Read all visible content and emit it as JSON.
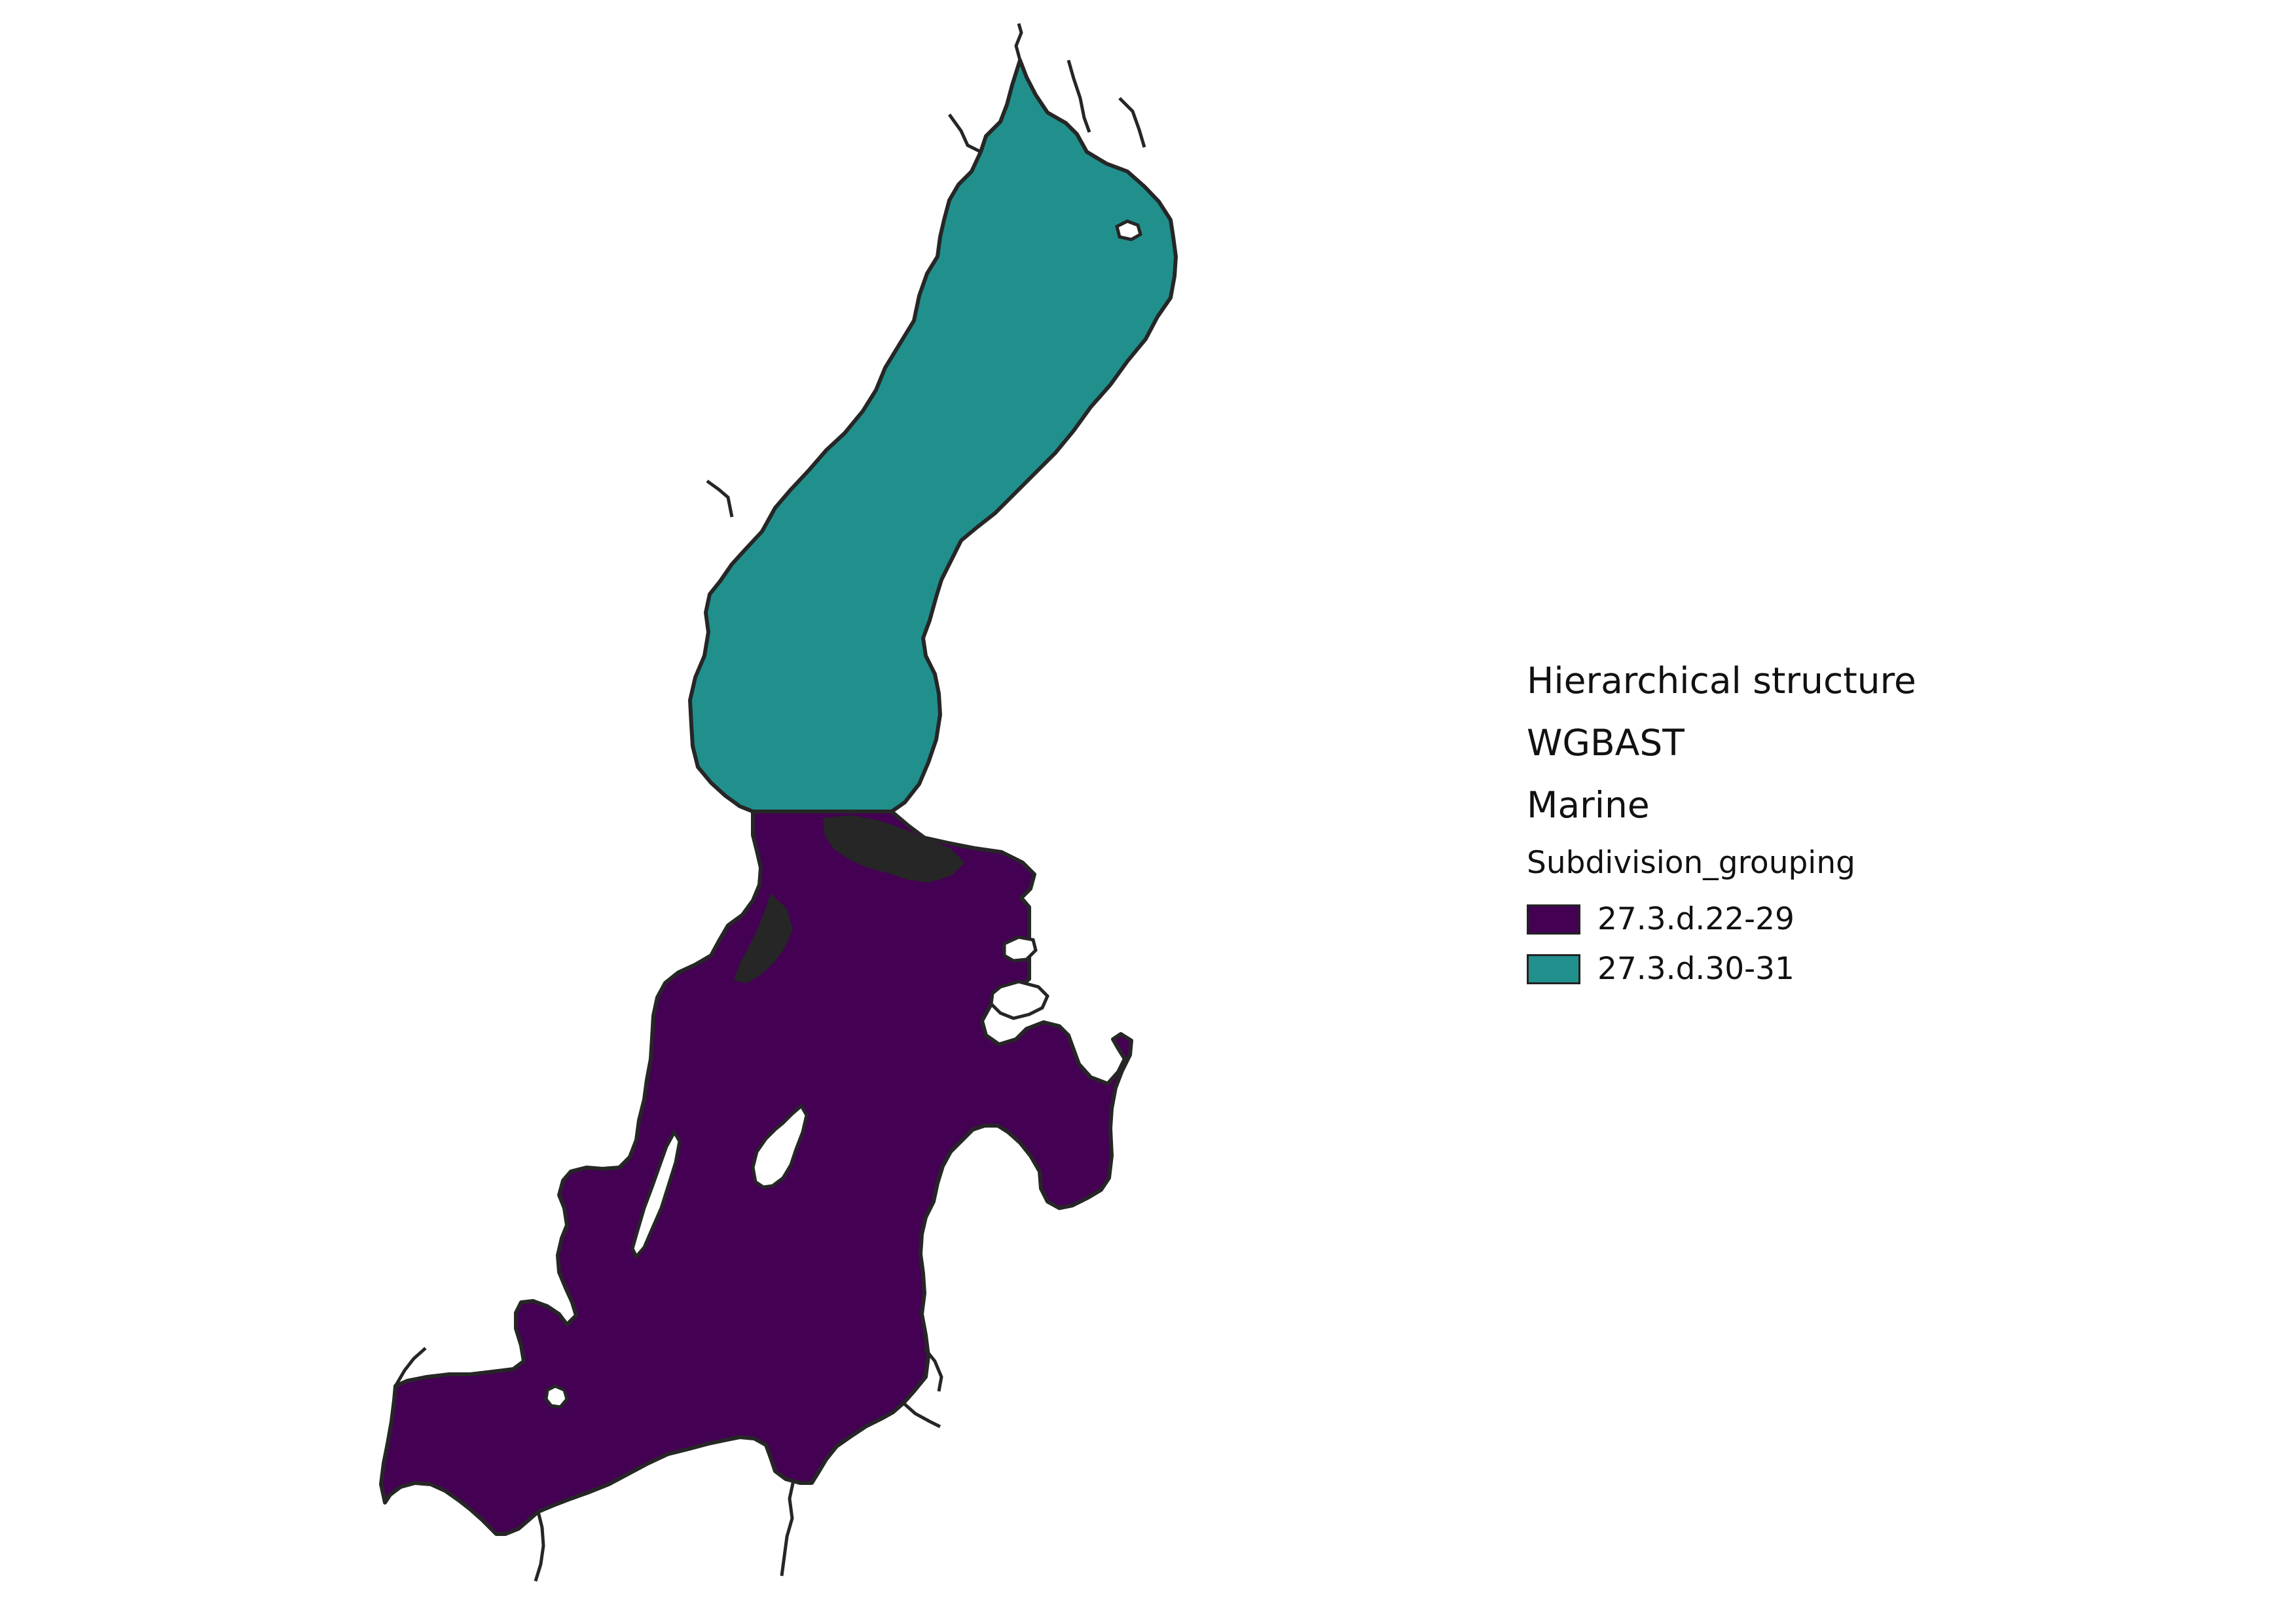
{
  "colors": {
    "background": "#ffffff",
    "outline": "#262626"
  },
  "map": {
    "layers": [
      {
        "name": "27.3.d.30-31",
        "fill": "#21908d",
        "icon": "teal-region"
      },
      {
        "name": "27.3.d.22-29",
        "fill": "#440154",
        "icon": "purple-region"
      }
    ]
  },
  "legend": {
    "headings": [
      "Hierarchical structure",
      "WGBAST",
      "Marine"
    ],
    "subtitle": "Subdivision_grouping",
    "items": [
      {
        "label": "27.3.d.22-29",
        "color": "#440154"
      },
      {
        "label": "27.3.d.30-31",
        "color": "#21908d"
      }
    ]
  }
}
